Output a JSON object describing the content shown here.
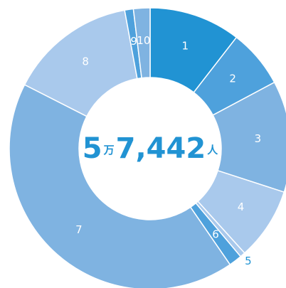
{
  "chart_data": {
    "type": "donut",
    "center_text": [
      "5",
      "万",
      "7,442",
      "人"
    ],
    "categories": [
      "1",
      "2",
      "3",
      "4",
      "5",
      "6",
      "7",
      "8",
      "9",
      "10"
    ],
    "values": [
      10.5,
      6.7,
      12.8,
      8.3,
      0.6,
      1.5,
      42.1,
      14.6,
      1.0,
      1.9
    ],
    "colors": [
      "#2193d3",
      "#4ea1dc",
      "#7fb3e1",
      "#a9c9ec",
      "#a9c9ec",
      "#4ea1dc",
      "#7fb3e1",
      "#a9c9ec",
      "#4ea1dc",
      "#7fb3e1"
    ]
  }
}
